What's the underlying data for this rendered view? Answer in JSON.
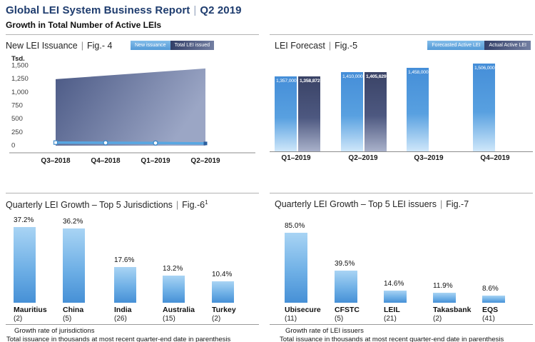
{
  "header": {
    "title": "Global LEI System Business Report",
    "separator": "|",
    "period": "Q2 2019",
    "subtitle": "Growth in Total Number of Active LEIs"
  },
  "panels": {
    "tl": {
      "title": "New LEI Issuance",
      "fig": "Fig.- 4",
      "legend": [
        {
          "label": "New issuance"
        },
        {
          "label": "Total LEI issued"
        }
      ],
      "y_unit": "Tsd."
    },
    "tr": {
      "title": "LEI Forecast",
      "fig": "Fig.-5",
      "legend": [
        {
          "label": "Forecasted Active LEI"
        },
        {
          "label": "Actual Active LEI"
        }
      ]
    },
    "bl": {
      "title": "Quarterly LEI Growth – Top 5 Jurisdictions",
      "fig": "Fig.-6",
      "fig_sup": "1",
      "footnote1": "Growth rate of jurisdictions",
      "footnote2": "Total issuance in thousands at most recent quarter-end date in parenthesis"
    },
    "br": {
      "title": "Quarterly LEI Growth – Top 5 LEI issuers",
      "fig": "Fig.-7",
      "footnote1": "Growth rate of LEI issuers",
      "footnote2": "Total issuance in thousands at most recent quarter-end date in parenthesis"
    }
  },
  "colors": {
    "accent_navy": "#1e3c6e",
    "bar_light_blue_top": "#458ed8",
    "bar_light_blue_bottom": "#cfe7fa",
    "bar_dark_navy_top": "#3a4366",
    "bar_dark_navy_bottom": "#a9b1ca",
    "area_slate_left": "#4b5985",
    "area_slate_right": "#9ba6c5",
    "issuance_line_blue": "#58a7e2",
    "percent_bar_top": "#a9d4f4",
    "percent_bar_bottom": "#4690d6"
  },
  "chart_data": [
    {
      "type": "area",
      "title": "New LEI Issuance",
      "fig": "Fig.- 4",
      "ylabel": "Tsd.",
      "ylim": [
        0,
        1500
      ],
      "yticks": [
        1500,
        1250,
        1000,
        750,
        500,
        250,
        0
      ],
      "categories": [
        "Q3–2018",
        "Q4–2018",
        "Q1–2019",
        "Q2–2019"
      ],
      "series": [
        {
          "name": "Total LEI issued",
          "type": "area",
          "values": [
            1233,
            1300,
            1367,
            1434
          ]
        },
        {
          "name": "New issuance",
          "type": "line",
          "values": [
            44,
            40,
            36,
            28
          ]
        }
      ],
      "legend_position": "top-right",
      "grid": false
    },
    {
      "type": "bar",
      "title": "LEI Forecast",
      "fig": "Fig.-5",
      "categories": [
        "Q1–2019",
        "Q2–2019",
        "Q3–2019",
        "Q4–2019"
      ],
      "series": [
        {
          "name": "Forecasted Active LEI",
          "values": [
            1357000,
            1410000,
            1458000,
            1506000
          ],
          "labels": [
            "1,357,000",
            "1,410,000",
            "1,458,000",
            "1,506,000"
          ]
        },
        {
          "name": "Actual Active LEI",
          "values": [
            1358872,
            1405629,
            null,
            null
          ],
          "labels": [
            "1,358,872",
            "1,405,629",
            null,
            null
          ]
        }
      ],
      "ylim": [
        500000,
        1620000
      ],
      "value_labels_position": "inside-top",
      "legend_position": "top-right",
      "grid": false
    },
    {
      "type": "bar",
      "title": "Quarterly LEI Growth – Top 5 Jurisdictions",
      "fig": "Fig.-6¹",
      "categories": [
        "Mauritius",
        "China",
        "India",
        "Australia",
        "Turkey"
      ],
      "category_counts": [
        "(2)",
        "(5)",
        "(26)",
        "(15)",
        "(2)"
      ],
      "values": [
        37.2,
        36.2,
        17.6,
        13.2,
        10.4
      ],
      "labels": [
        "37.2%",
        "36.2%",
        "17.6%",
        "13.2%",
        "10.4%"
      ],
      "ylim": [
        0,
        43
      ],
      "value_labels_position": "above",
      "grid": false
    },
    {
      "type": "bar",
      "title": "Quarterly LEI Growth – Top 5 LEI issuers",
      "fig": "Fig.-7",
      "categories": [
        "Ubisecure",
        "CFSTC",
        "LEIL",
        "Takasbank",
        "EQS"
      ],
      "category_counts": [
        "(11)",
        "(5)",
        "(21)",
        "(2)",
        "(41)"
      ],
      "values": [
        85.0,
        39.5,
        14.6,
        11.9,
        8.6
      ],
      "labels": [
        "85.0%",
        "39.5%",
        "14.6%",
        "11.9%",
        "8.6%"
      ],
      "ylim": [
        0,
        107
      ],
      "value_labels_position": "above",
      "grid": false
    }
  ]
}
